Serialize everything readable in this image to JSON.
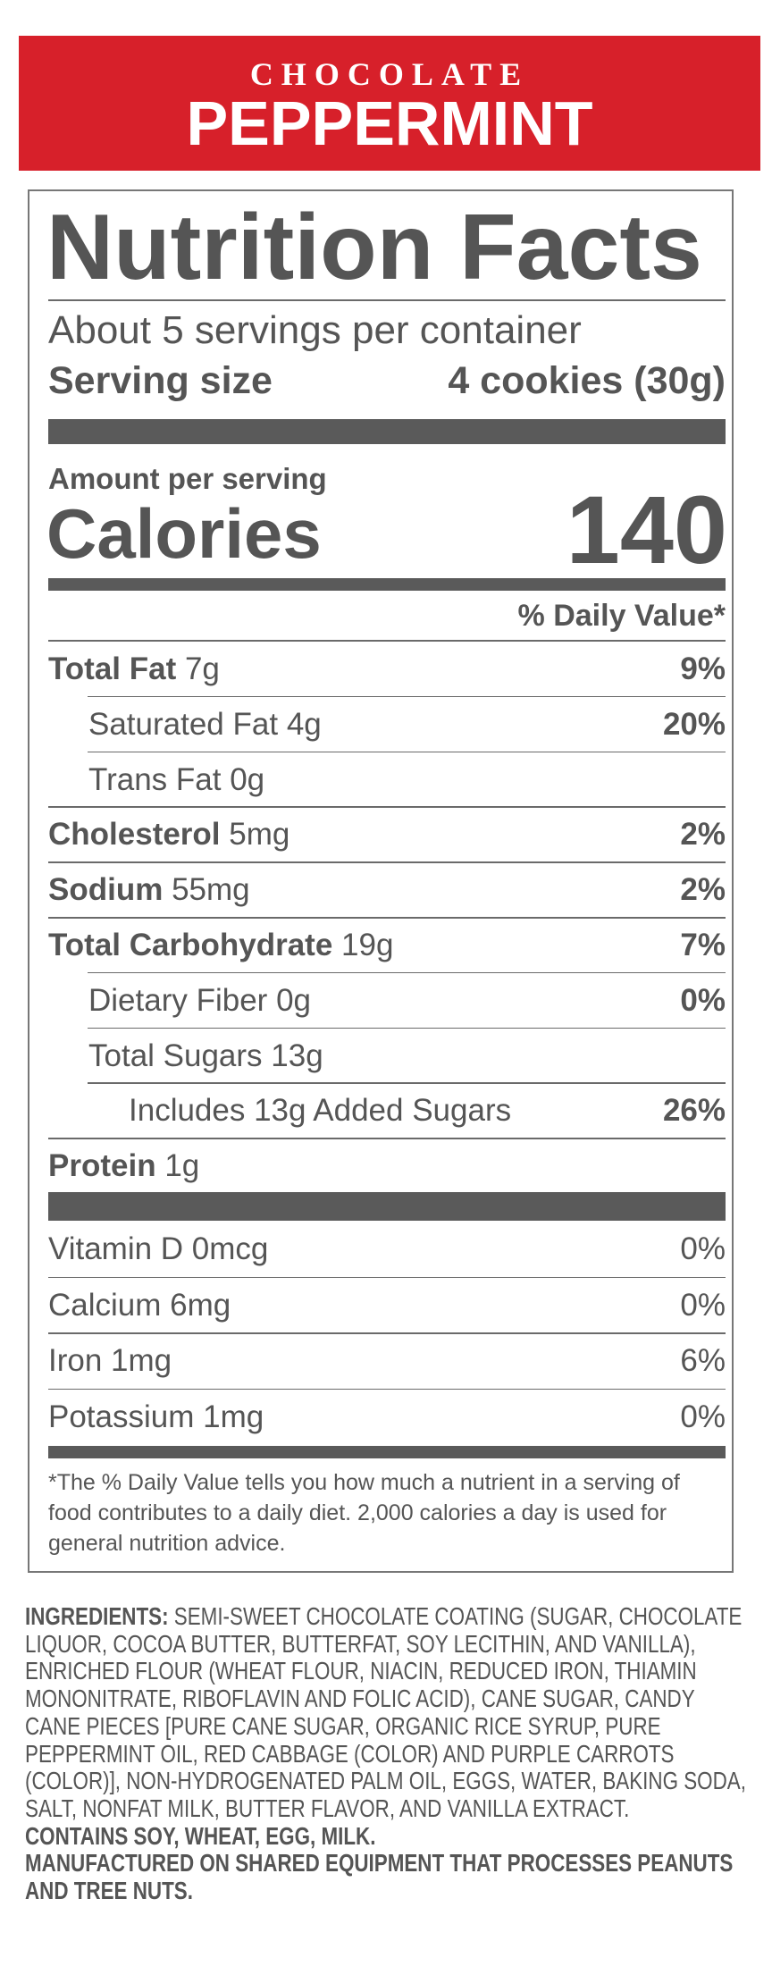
{
  "banner": {
    "line1": "CHOCOLATE",
    "line2": "PEPPERMINT"
  },
  "label": {
    "title": "Nutrition Facts",
    "servings": "About 5 servings per container",
    "serving_size_label": "Serving size",
    "serving_size_value": "4 cookies (30g)",
    "amount_per_serving": "Amount per serving",
    "calories_label": "Calories",
    "calories_value": "140",
    "daily_value_header": "% Daily Value*",
    "nutrients": [
      {
        "name": "Total Fat",
        "amount": "7g",
        "dv": "9%",
        "level": 0
      },
      {
        "name": "Saturated Fat",
        "amount": "4g",
        "dv": "20%",
        "level": 1
      },
      {
        "name": "Trans Fat",
        "amount": "0g",
        "level": 1
      },
      {
        "name": "Cholesterol",
        "amount": "5mg",
        "dv": "2%",
        "level": 0
      },
      {
        "name": "Sodium",
        "amount": "55mg",
        "dv": "2%",
        "level": 0
      },
      {
        "name": "Total Carbohydrate",
        "amount": "19g",
        "dv": "7%",
        "level": 0
      },
      {
        "name": "Dietary Fiber",
        "amount": "0g",
        "dv": "0%",
        "level": 1
      },
      {
        "name": "Total Sugars",
        "amount": "13g",
        "level": 1
      },
      {
        "name": "Includes 13g Added Sugars",
        "dv": "26%",
        "level": 2
      },
      {
        "name": "Protein",
        "amount": "1g",
        "level": 0
      }
    ],
    "vitamins": [
      {
        "name": "Vitamin D 0mcg",
        "dv": "0%"
      },
      {
        "name": "Calcium 6mg",
        "dv": "0%"
      },
      {
        "name": "Iron 1mg",
        "dv": "6%"
      },
      {
        "name": "Potassium 1mg",
        "dv": "0%"
      }
    ],
    "footnote": "*The % Daily Value tells you how much a nutrient in a serving of food contributes to a daily diet. 2,000 calories a day is used for general nutrition advice."
  },
  "ingredients": {
    "label": "INGREDIENTS:",
    "text": "SEMI-SWEET CHOCOLATE COATING (SUGAR, CHOCOLATE LIQUOR, COCOA BUTTER, BUTTERFAT, SOY LECITHIN, AND VANILLA), ENRICHED FLOUR (WHEAT FLOUR, NIACIN, REDUCED IRON, THIAMIN MONONITRATE, RIBOFLAVIN AND FOLIC ACID), CANE SUGAR, CANDY CANE PIECES [PURE CANE SUGAR, ORGANIC RICE SYRUP, PURE PEPPERMINT OIL, RED CABBAGE (COLOR) AND PURPLE CARROTS (COLOR)], NON-HYDROGENATED PALM OIL, EGGS, WATER, BAKING SODA, SALT, NONFAT MILK, BUTTER FLAVOR, AND VANILLA EXTRACT.",
    "contains": "CONTAINS SOY, WHEAT, EGG, MILK.",
    "manufactured": "MANUFACTURED ON SHARED EQUIPMENT THAT PROCESSES PEANUTS AND TREE NUTS."
  }
}
